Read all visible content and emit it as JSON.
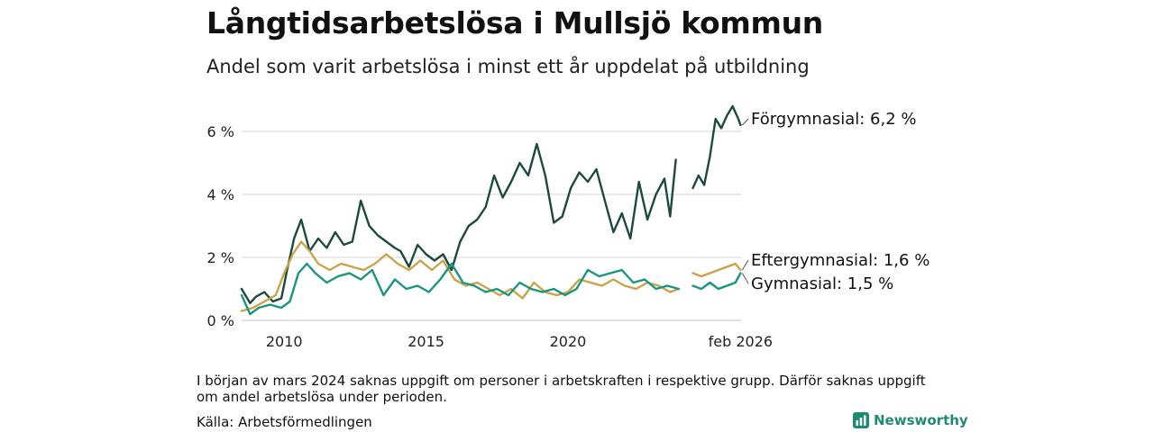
{
  "header": {
    "title": "Långtidsarbetslösa i Mullsjö kommun",
    "subtitle": "Andel som varit arbetslösa i minst ett år uppdelat på utbildning"
  },
  "footer": {
    "note": "I början av mars 2024 saknas uppgift om personer i arbetskraften i respektive grupp. Därför saknas uppgift om andel arbetslösa under perioden.",
    "source": "Källa: Arbetsförmedlingen",
    "brand": "Newsworthy"
  },
  "chart_data": {
    "type": "line",
    "title": "Långtidsarbetslösa i Mullsjö kommun",
    "ylim": [
      0,
      6.8
    ],
    "xlim": [
      2008.5,
      2026.1
    ],
    "yticks": [
      {
        "value": 0,
        "label": "0 %"
      },
      {
        "value": 2,
        "label": "2 %"
      },
      {
        "value": 4,
        "label": "4 %"
      },
      {
        "value": 6,
        "label": "6 %"
      }
    ],
    "xticks": [
      {
        "value": 2010,
        "label": "2010"
      },
      {
        "value": 2015,
        "label": "2015"
      },
      {
        "value": 2020,
        "label": "2020"
      },
      {
        "value": 2026.08,
        "label": "feb 2026"
      }
    ],
    "gap": [
      2024.1,
      2024.35
    ],
    "series": [
      {
        "name": "Förgymnasial",
        "end_label": "Förgymnasial: 6,2 %",
        "color": "#1d4a3f",
        "x": [
          2008.5,
          2008.8,
          2009.0,
          2009.3,
          2009.6,
          2009.9,
          2010.1,
          2010.35,
          2010.6,
          2010.9,
          2011.2,
          2011.5,
          2011.8,
          2012.1,
          2012.4,
          2012.7,
          2013.0,
          2013.3,
          2013.6,
          2013.9,
          2014.1,
          2014.4,
          2014.7,
          2015.0,
          2015.3,
          2015.6,
          2015.9,
          2016.2,
          2016.5,
          2016.8,
          2017.1,
          2017.4,
          2017.7,
          2018.0,
          2018.3,
          2018.6,
          2018.9,
          2019.2,
          2019.5,
          2019.8,
          2020.1,
          2020.4,
          2020.7,
          2021.0,
          2021.3,
          2021.6,
          2021.9,
          2022.2,
          2022.5,
          2022.8,
          2023.1,
          2023.4,
          2023.6,
          2023.8,
          2024.1,
          2024.4,
          2024.6,
          2024.8,
          2025.0,
          2025.2,
          2025.4,
          2025.6,
          2025.8,
          2026.0,
          2026.08
        ],
        "y": [
          1.0,
          0.55,
          0.75,
          0.9,
          0.6,
          0.7,
          1.6,
          2.6,
          3.2,
          2.2,
          2.6,
          2.3,
          2.8,
          2.4,
          2.5,
          3.8,
          3.0,
          2.7,
          2.5,
          2.3,
          2.2,
          1.7,
          2.4,
          2.1,
          1.9,
          2.1,
          1.6,
          2.5,
          3.0,
          3.2,
          3.6,
          4.6,
          3.9,
          4.4,
          5.0,
          4.6,
          5.6,
          4.6,
          3.1,
          3.3,
          4.2,
          4.7,
          4.4,
          4.8,
          3.8,
          2.8,
          3.4,
          2.6,
          4.4,
          3.2,
          4.0,
          4.5,
          3.3,
          5.1,
          null,
          4.2,
          4.6,
          4.3,
          5.2,
          6.4,
          6.1,
          6.5,
          6.8,
          6.4,
          6.2
        ]
      },
      {
        "name": "Eftergymnasial",
        "end_label": "Eftergymnasial: 1,6 %",
        "color": "#c9a24a",
        "x": [
          2008.5,
          2008.9,
          2009.3,
          2009.7,
          2010.0,
          2010.3,
          2010.6,
          2010.9,
          2011.2,
          2011.6,
          2012.0,
          2012.4,
          2012.8,
          2013.2,
          2013.6,
          2014.0,
          2014.4,
          2014.8,
          2015.2,
          2015.6,
          2016.0,
          2016.4,
          2016.8,
          2017.2,
          2017.6,
          2018.0,
          2018.4,
          2018.8,
          2019.2,
          2019.6,
          2020.0,
          2020.4,
          2020.8,
          2021.2,
          2021.6,
          2022.0,
          2022.4,
          2022.8,
          2023.2,
          2023.6,
          2023.9,
          2024.1,
          2024.4,
          2024.7,
          2025.0,
          2025.3,
          2025.6,
          2025.9,
          2026.08
        ],
        "y": [
          0.3,
          0.4,
          0.6,
          0.8,
          1.5,
          2.1,
          2.5,
          2.2,
          1.8,
          1.6,
          1.8,
          1.7,
          1.6,
          1.8,
          2.1,
          1.8,
          1.6,
          1.9,
          1.6,
          1.9,
          1.3,
          1.1,
          1.2,
          1.0,
          0.8,
          1.0,
          0.7,
          1.2,
          0.9,
          0.8,
          0.9,
          1.3,
          1.2,
          1.1,
          1.3,
          1.1,
          1.0,
          1.2,
          1.1,
          0.9,
          1.0,
          null,
          1.5,
          1.4,
          1.5,
          1.6,
          1.7,
          1.8,
          1.6
        ]
      },
      {
        "name": "Gymnasial",
        "end_label": "Gymnasial: 1,5 %",
        "color": "#1a9580",
        "x": [
          2008.5,
          2008.8,
          2009.1,
          2009.5,
          2009.9,
          2010.2,
          2010.5,
          2010.8,
          2011.1,
          2011.5,
          2011.9,
          2012.3,
          2012.7,
          2013.1,
          2013.5,
          2013.9,
          2014.3,
          2014.7,
          2015.1,
          2015.5,
          2015.9,
          2016.3,
          2016.7,
          2017.1,
          2017.5,
          2017.9,
          2018.3,
          2018.7,
          2019.1,
          2019.5,
          2019.9,
          2020.3,
          2020.7,
          2021.1,
          2021.5,
          2021.9,
          2022.3,
          2022.7,
          2023.1,
          2023.5,
          2023.9,
          2024.1,
          2024.4,
          2024.7,
          2025.0,
          2025.3,
          2025.6,
          2025.9,
          2026.08
        ],
        "y": [
          0.8,
          0.2,
          0.4,
          0.5,
          0.4,
          0.6,
          1.5,
          1.8,
          1.5,
          1.2,
          1.4,
          1.5,
          1.3,
          1.6,
          0.8,
          1.3,
          1.0,
          1.1,
          0.9,
          1.3,
          1.8,
          1.2,
          1.1,
          0.9,
          1.0,
          0.8,
          1.2,
          1.0,
          0.9,
          1.0,
          0.8,
          1.0,
          1.6,
          1.4,
          1.5,
          1.6,
          1.2,
          1.3,
          1.0,
          1.1,
          1.0,
          null,
          1.1,
          1.0,
          1.2,
          1.0,
          1.1,
          1.2,
          1.5
        ]
      }
    ]
  }
}
